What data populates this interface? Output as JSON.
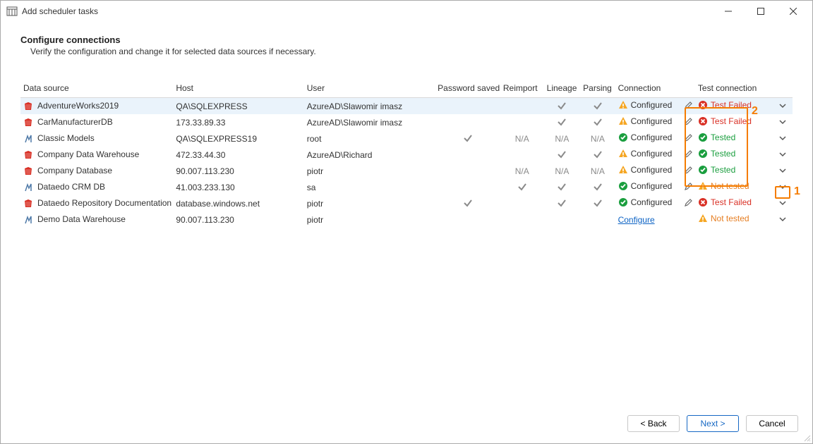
{
  "window": {
    "title": "Add scheduler tasks"
  },
  "page": {
    "heading": "Configure connections",
    "subheading": "Verify the configuration and change it for selected data sources if necessary."
  },
  "columns": {
    "data_source": "Data source",
    "host": "Host",
    "user": "User",
    "password_saved": "Password saved",
    "reimport": "Reimport",
    "lineage": "Lineage",
    "parsing": "Parsing",
    "connection": "Connection",
    "test_connection": "Test connection"
  },
  "labels": {
    "na": "N/A",
    "configured": "Configured",
    "configure": "Configure",
    "tested": "Tested",
    "test_failed": "Test Failed",
    "not_tested": "Not tested"
  },
  "buttons": {
    "back": "< Back",
    "next": "Next >",
    "cancel": "Cancel"
  },
  "rows": [
    {
      "icon": "sqlserver-red",
      "data_source": "AdventureWorks2019",
      "host": "QA\\SQLEXPRESS",
      "user": "AzureAD\\Slawomir         imasz",
      "password_saved": "",
      "reimport": "",
      "lineage": "check",
      "parsing": "check",
      "connection": "warn",
      "test": "fail",
      "selected": true
    },
    {
      "icon": "sqlserver-red",
      "data_source": "CarManufacturerDB",
      "host": "173.33.89.33",
      "user": "AzureAD\\Slawomir         imasz",
      "password_saved": "",
      "reimport": "",
      "lineage": "check",
      "parsing": "check",
      "connection": "warn",
      "test": "fail"
    },
    {
      "icon": "mysql",
      "data_source": "Classic Models",
      "host": "QA\\SQLEXPRESS19",
      "user": "root",
      "password_saved": "check",
      "reimport": "na",
      "lineage": "na",
      "parsing": "na",
      "connection": "ok",
      "test": "ok"
    },
    {
      "icon": "sqlserver-red",
      "data_source": "Company Data Warehouse",
      "host": "472.33.44.30",
      "user": "AzureAD\\Richard",
      "password_saved": "",
      "reimport": "",
      "lineage": "check",
      "parsing": "check",
      "connection": "warn",
      "test": "ok"
    },
    {
      "icon": "sqlserver-red",
      "data_source": "Company Database",
      "host": "90.007.113.230",
      "user": "piotr",
      "password_saved": "",
      "reimport": "na",
      "lineage": "na",
      "parsing": "na",
      "connection": "warn",
      "test": "ok"
    },
    {
      "icon": "mysql",
      "data_source": "Dataedo CRM DB",
      "host": "41.003.233.130",
      "user": "sa",
      "password_saved": "",
      "reimport": "check",
      "lineage": "check",
      "parsing": "check",
      "connection": "ok",
      "test": "nottested"
    },
    {
      "icon": "sqlserver-red",
      "data_source": "Dataedo Repository Documentation",
      "host": "database.windows.net",
      "user": "piotr",
      "password_saved": "check",
      "reimport": "",
      "lineage": "check",
      "parsing": "check",
      "connection": "ok",
      "test": "fail"
    },
    {
      "icon": "mysql",
      "data_source": "Demo Data Warehouse",
      "host": "90.007.113.230",
      "user": "piotr",
      "password_saved": "",
      "reimport": "",
      "lineage": "",
      "parsing": "",
      "connection": "configure",
      "test": "nottested"
    }
  ],
  "callouts": {
    "1": "1",
    "2": "2"
  },
  "colors": {
    "warn": "#f5a623",
    "ok": "#1a9e3e",
    "fail": "#d93025",
    "link": "#0b62c4",
    "highlight": "#f57c00",
    "row_selected": "#eaf3fb",
    "na_text": "#8a8a8a"
  }
}
